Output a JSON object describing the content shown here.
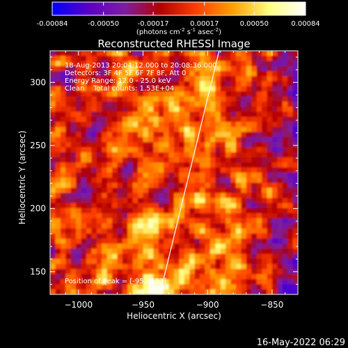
{
  "chart_data": {
    "type": "heatmap",
    "title": "Reconstructed RHESSI Image",
    "xlabel": "Heliocentric X (arcsec)",
    "ylabel": "Heliocentric Y (arcsec)",
    "xlim": [
      -1022,
      -830
    ],
    "ylim": [
      132,
      325
    ],
    "x_ticks": [
      -1000,
      -950,
      -900,
      -850
    ],
    "y_ticks": [
      150,
      200,
      250,
      300
    ],
    "colorbar": {
      "range": [
        -0.00084,
        0.00084
      ],
      "tick_values": [
        -0.00084,
        -0.0005,
        -0.00017,
        0.00017,
        0.0005,
        0.00084
      ],
      "tick_labels": [
        "-0.00084",
        "-0.00050",
        "-0.00017",
        "0.00017",
        "0.00050",
        "0.00084"
      ],
      "unit_label_parts": [
        "(photons cm",
        "-2",
        " s",
        "-1",
        " asec",
        "-2",
        ")"
      ],
      "colors": [
        "#0000ff",
        "#5a00c8",
        "#7d1ea0",
        "#b40000",
        "#ff4000",
        "#ffa000",
        "#ffff80",
        "#ffffff"
      ]
    },
    "annotations": [
      "18-Aug-2013 20:04:12.000 to 20:08:36.000",
      "Detectors: 3F 4F 5F 6F 7F 8F, Att 0",
      "Energy Range: 12.0 - 25.0 keV",
      "Clean    Total counts: 1.53E+04"
    ],
    "peak_label": "Position of Peak = [-952,132]",
    "peak_position": [
      -952,
      132
    ],
    "limb_line": [
      [
        -937,
        132
      ],
      [
        -891,
        325
      ]
    ],
    "footer": "16-May-2022 06:29"
  }
}
